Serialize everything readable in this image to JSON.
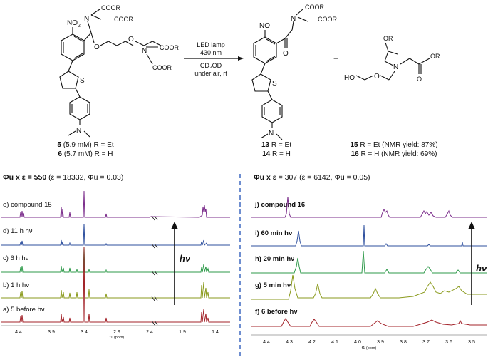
{
  "scheme": {
    "reactant": {
      "coor": "COOR",
      "no2": "NO",
      "no2_sub": "2",
      "s": "S",
      "n": "N",
      "label_5_num": "5",
      "label_5_rest": " (5.9 mM) R = Et",
      "label_6_num": "6",
      "label_6_rest": " (5.7 mM) R = H"
    },
    "conditions": {
      "line1": "LED lamp",
      "line2": "430 nm",
      "line3": "CD₃OD",
      "line4": "under air, rt"
    },
    "product": {
      "no": "NO",
      "o": "O",
      "label_13_num": "13",
      "label_13_rest": " R = Et",
      "label_14_num": "14",
      "label_14_rest": " R = H"
    },
    "plus": "+",
    "byproduct": {
      "or": "OR",
      "ho": "HO",
      "o": "O",
      "n": "N",
      "label_15_num": "15",
      "label_15_rest": " R = Et (NMR yield: 87%)",
      "label_16_num": "16",
      "label_16_rest": " R = H  (NMR yield: 69%)"
    }
  },
  "left_panel": {
    "heading_bold": "Φu x ε = 550",
    "heading_rest": " (ε = 18332, Φu = 0.03)",
    "traces": [
      {
        "label": "e) compound 15",
        "color": "#7b2d8b"
      },
      {
        "label": "d) 11 h hν",
        "color": "#2d4f9e"
      },
      {
        "label": "c) 6 h hν",
        "color": "#2e9a4a"
      },
      {
        "label": "b) 1 h hν",
        "color": "#8a9a1c"
      },
      {
        "label": "a) 5 before hν",
        "color": "#a3232a"
      }
    ],
    "hv": "hν",
    "ticks": [
      "4.4",
      "3.9",
      "3.4",
      "2.9",
      "2.4",
      "1.9",
      "1.4"
    ],
    "axis_title": "f1 (ppm)"
  },
  "right_panel": {
    "heading_bold": "Φu x ε",
    "heading_rest": " = 307 (ε = 6142, Φu = 0.05)",
    "traces": [
      {
        "label": "j) compound 16",
        "color": "#7b2d8b"
      },
      {
        "label": "i) 60 min hν",
        "color": "#2d4f9e"
      },
      {
        "label": "h) 20 min hν",
        "color": "#2e9a4a"
      },
      {
        "label": "g) 5 min hν",
        "color": "#8a9a1c"
      },
      {
        "label": "f) 6 before hν",
        "color": "#a3232a"
      }
    ],
    "hv": "hν",
    "ticks": [
      "4.4",
      "4.3",
      "4.2",
      "4.1",
      "4.0",
      "3.9",
      "3.8",
      "3.7",
      "3.6",
      "3.5"
    ],
    "axis_title": "f1 (ppm)"
  },
  "colors": {
    "divider": "#4a72c4",
    "purple": "#7b2d8b",
    "blue": "#2d4f9e",
    "green": "#2e9a4a",
    "olive": "#8a9a1c",
    "red": "#a3232a"
  }
}
